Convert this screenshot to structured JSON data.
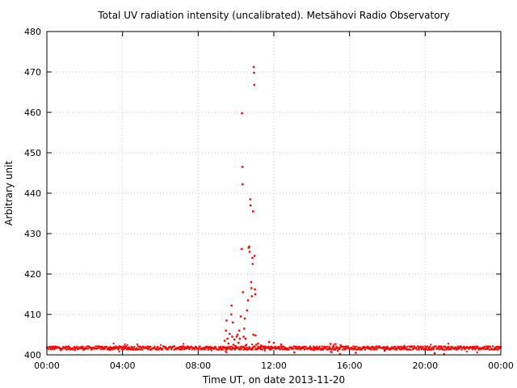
{
  "chart_data": {
    "type": "scatter",
    "title": "Total UV radiation intensity (uncalibrated). Metsähovi Radio Observatory",
    "xlabel": "Time UT, on date 2013-11-20",
    "ylabel": "Arbitrary unit",
    "xlim": [
      "00:00",
      "24:00"
    ],
    "ylim": [
      400,
      480
    ],
    "x_ticks": [
      "00:00",
      "04:00",
      "08:00",
      "12:00",
      "16:00",
      "20:00",
      "00:00"
    ],
    "y_ticks": [
      400,
      410,
      420,
      430,
      440,
      450,
      460,
      470,
      480
    ],
    "grid": true,
    "series": [
      {
        "color": "#ff0000",
        "baseline": 401.7,
        "points": [
          [
            "09:24",
            403.5
          ],
          [
            "09:28",
            406.0
          ],
          [
            "09:30",
            408.5
          ],
          [
            "09:33",
            404.0
          ],
          [
            "09:36",
            402.8
          ],
          [
            "09:40",
            405.2
          ],
          [
            "09:45",
            410.0
          ],
          [
            "09:46",
            412.2
          ],
          [
            "09:48",
            404.5
          ],
          [
            "09:50",
            408.0
          ],
          [
            "09:52",
            402.5
          ],
          [
            "09:55",
            403.8
          ],
          [
            "09:58",
            402.2
          ],
          [
            "10:02",
            404.5
          ],
          [
            "10:05",
            405.0
          ],
          [
            "10:08",
            403.0
          ],
          [
            "10:10",
            406.0
          ],
          [
            "10:12",
            404.0
          ],
          [
            "10:15",
            409.5
          ],
          [
            "10:18",
            426.2
          ],
          [
            "10:19",
            459.8
          ],
          [
            "10:20",
            446.5
          ],
          [
            "10:21",
            442.2
          ],
          [
            "10:22",
            415.5
          ],
          [
            "10:24",
            404.5
          ],
          [
            "10:26",
            406.5
          ],
          [
            "10:28",
            409.0
          ],
          [
            "10:30",
            404.0
          ],
          [
            "10:33",
            402.5
          ],
          [
            "10:35",
            411.0
          ],
          [
            "10:38",
            413.5
          ],
          [
            "10:40",
            426.5
          ],
          [
            "10:42",
            426.8
          ],
          [
            "10:43",
            425.5
          ],
          [
            "10:45",
            438.5
          ],
          [
            "10:46",
            437.0
          ],
          [
            "10:48",
            418.0
          ],
          [
            "10:49",
            416.5
          ],
          [
            "10:50",
            414.5
          ],
          [
            "10:52",
            424.0
          ],
          [
            "10:53",
            422.5
          ],
          [
            "10:54",
            435.5
          ],
          [
            "10:55",
            405.0
          ],
          [
            "10:56",
            471.2
          ],
          [
            "10:57",
            469.8
          ],
          [
            "10:58",
            466.8
          ],
          [
            "10:59",
            424.5
          ],
          [
            "11:00",
            416.2
          ],
          [
            "11:01",
            415.0
          ],
          [
            "11:02",
            404.8
          ],
          [
            "11:04",
            402.5
          ],
          [
            "11:10",
            402.8
          ],
          [
            "11:20",
            402.3
          ],
          [
            "11:30",
            402.0
          ],
          [
            "11:45",
            403.2
          ],
          [
            "12:00",
            403.0
          ],
          [
            "13:05",
            400.6
          ],
          [
            "15:00",
            402.7
          ],
          [
            "15:30",
            400.2
          ],
          [
            "16:20",
            400.5
          ],
          [
            "20:30",
            400.4
          ],
          [
            "21:00",
            400.2
          ]
        ]
      }
    ]
  }
}
